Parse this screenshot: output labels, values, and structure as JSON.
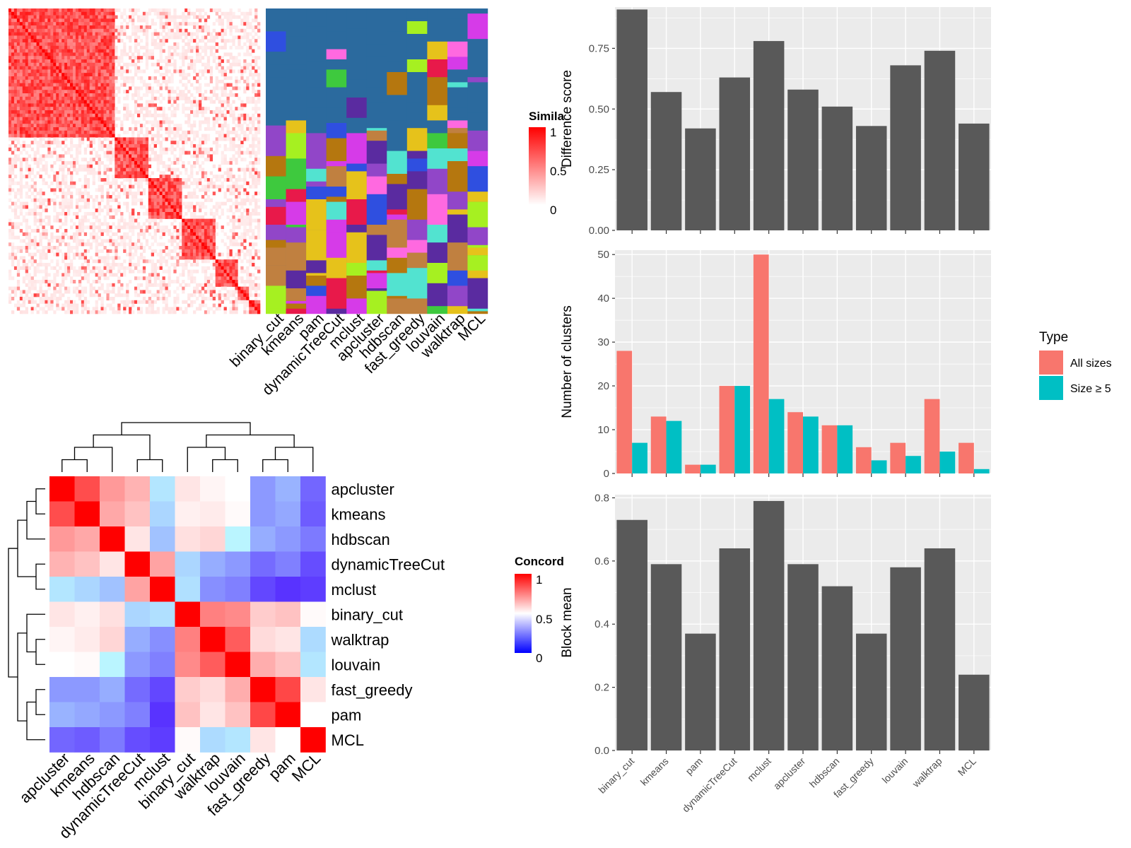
{
  "methods": [
    "binary_cut",
    "kmeans",
    "pam",
    "dynamicTreeCut",
    "mclust",
    "apcluster",
    "hdbscan",
    "fast_greedy",
    "louvain",
    "walktrap",
    "MCL"
  ],
  "similarity_panel": {
    "legend_title": "Simila",
    "legend_ticks": [
      "1",
      "0.5",
      "0"
    ],
    "colors": {
      "high": "#ff0000",
      "low": "#ffffff"
    }
  },
  "assignment_panel": {
    "column_labels": [
      "binary_cut",
      "kmeans",
      "pam",
      "dynamicTreeCut",
      "mclust",
      "apcluster",
      "hdbscan",
      "fast_greedy",
      "louvain",
      "walktrap",
      "MCL"
    ]
  },
  "concordance_panel": {
    "legend_title": "Concord",
    "legend_ticks": [
      "1",
      "0.5",
      "0"
    ],
    "colors": {
      "high": "#ff0000",
      "mid": "#ffffff",
      "low": "#0000ff"
    },
    "order": [
      "apcluster",
      "kmeans",
      "hdbscan",
      "dynamicTreeCut",
      "mclust",
      "binary_cut",
      "walktrap",
      "louvain",
      "fast_greedy",
      "pam",
      "MCL"
    ],
    "matrix": [
      [
        1.0,
        0.85,
        0.7,
        0.65,
        0.45,
        0.55,
        0.52,
        0.5,
        0.3,
        0.35,
        0.2
      ],
      [
        0.85,
        1.0,
        0.67,
        0.62,
        0.42,
        0.53,
        0.54,
        0.51,
        0.3,
        0.33,
        0.18
      ],
      [
        0.7,
        0.67,
        1.0,
        0.55,
        0.38,
        0.56,
        0.58,
        0.48,
        0.34,
        0.3,
        0.24
      ],
      [
        0.65,
        0.62,
        0.55,
        1.0,
        0.68,
        0.42,
        0.34,
        0.3,
        0.21,
        0.25,
        0.15
      ],
      [
        0.45,
        0.42,
        0.38,
        0.68,
        1.0,
        0.44,
        0.28,
        0.25,
        0.14,
        0.1,
        0.12
      ],
      [
        0.55,
        0.53,
        0.56,
        0.42,
        0.44,
        1.0,
        0.75,
        0.73,
        0.6,
        0.62,
        0.51
      ],
      [
        0.52,
        0.54,
        0.58,
        0.34,
        0.28,
        0.75,
        1.0,
        0.82,
        0.57,
        0.55,
        0.43
      ],
      [
        0.5,
        0.51,
        0.48,
        0.3,
        0.25,
        0.73,
        0.82,
        1.0,
        0.66,
        0.62,
        0.45
      ],
      [
        0.3,
        0.3,
        0.34,
        0.21,
        0.14,
        0.6,
        0.57,
        0.66,
        1.0,
        0.86,
        0.55
      ],
      [
        0.35,
        0.33,
        0.3,
        0.25,
        0.1,
        0.62,
        0.55,
        0.62,
        0.86,
        1.0,
        0.5
      ],
      [
        0.2,
        0.18,
        0.24,
        0.15,
        0.12,
        0.51,
        0.43,
        0.45,
        0.55,
        0.5,
        1.0
      ]
    ]
  },
  "chart_data": [
    {
      "type": "bar",
      "categories": [
        "binary_cut",
        "kmeans",
        "pam",
        "dynamicTreeCut",
        "mclust",
        "apcluster",
        "hdbscan",
        "fast_greedy",
        "louvain",
        "walktrap",
        "MCL"
      ],
      "values": [
        0.91,
        0.57,
        0.42,
        0.63,
        0.78,
        0.58,
        0.51,
        0.43,
        0.68,
        0.74,
        0.44
      ],
      "ylabel": "Difference score",
      "ylim": [
        0,
        0.92
      ],
      "yticks": [
        "0.00",
        "0.25",
        "0.50",
        "0.75"
      ],
      "bar_color": "#595959",
      "grid": true
    },
    {
      "type": "bar",
      "categories": [
        "binary_cut",
        "kmeans",
        "pam",
        "dynamicTreeCut",
        "mclust",
        "apcluster",
        "hdbscan",
        "fast_greedy",
        "louvain",
        "walktrap",
        "MCL"
      ],
      "series": [
        {
          "name": "All sizes",
          "color": "#F8766D",
          "values": [
            28,
            13,
            2,
            20,
            50,
            14,
            11,
            6,
            7,
            17,
            7
          ]
        },
        {
          "name": "Size ≥ 5",
          "color": "#00BFC4",
          "values": [
            7,
            12,
            2,
            20,
            17,
            13,
            11,
            3,
            4,
            5,
            1
          ]
        }
      ],
      "ylabel": "Number of clusters",
      "ylim": [
        0,
        51
      ],
      "yticks": [
        "0",
        "10",
        "20",
        "30",
        "40",
        "50"
      ],
      "legend_title": "Type",
      "legend_position": "right",
      "grid": true
    },
    {
      "type": "bar",
      "categories": [
        "binary_cut",
        "kmeans",
        "pam",
        "dynamicTreeCut",
        "mclust",
        "apcluster",
        "hdbscan",
        "fast_greedy",
        "louvain",
        "walktrap",
        "MCL"
      ],
      "values": [
        0.73,
        0.59,
        0.37,
        0.64,
        0.79,
        0.59,
        0.52,
        0.37,
        0.58,
        0.64,
        0.24
      ],
      "ylabel": "Block mean",
      "ylim": [
        0,
        0.81
      ],
      "yticks": [
        "0.0",
        "0.2",
        "0.4",
        "0.6",
        "0.8"
      ],
      "bar_color": "#595959",
      "grid": true
    }
  ]
}
